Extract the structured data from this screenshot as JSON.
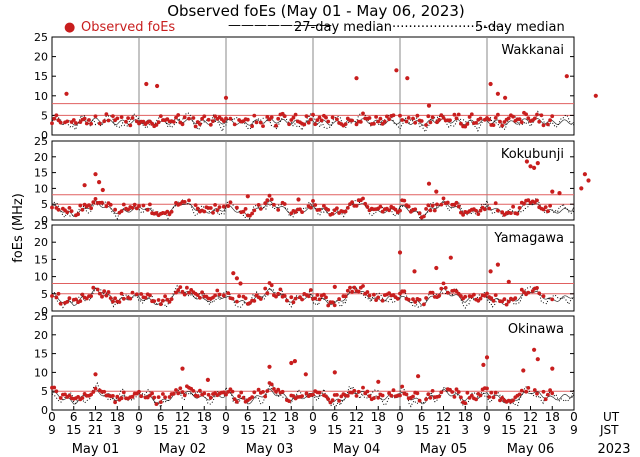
{
  "chart_data": {
    "type": "scatter",
    "title": "Observed foEs (May 01 - May 06, 2023)",
    "ylabel": "foEs (MHz)",
    "legend": {
      "observed": "Observed foEs",
      "median27": "27-day median",
      "median5": "5-day median"
    },
    "legend_markers": {
      "observed": "●",
      "median27": "————————",
      "median5": "····························"
    },
    "ylim": [
      0,
      25
    ],
    "yticks": [
      0,
      5,
      10,
      15,
      20,
      25
    ],
    "hour_ticks_ut": [
      "0",
      "6",
      "12",
      "18",
      "0",
      "6",
      "12",
      "18",
      "0",
      "6",
      "12",
      "18",
      "0",
      "6",
      "12",
      "18",
      "0",
      "6",
      "12",
      "18",
      "0",
      "6",
      "12",
      "18",
      "0"
    ],
    "hour_ticks_jst": [
      "9",
      "15",
      "21",
      "3",
      "9",
      "15",
      "21",
      "3",
      "9",
      "15",
      "21",
      "3",
      "9",
      "15",
      "21",
      "3",
      "9",
      "15",
      "21",
      "3",
      "9",
      "15",
      "21",
      "3",
      "9"
    ],
    "row_labels": {
      "ut": "UT",
      "jst": "JST"
    },
    "dates": [
      "May 01",
      "May 02",
      "May 03",
      "May 04",
      "May 05",
      "May 06"
    ],
    "year": "2023",
    "colors": {
      "observed": "#c81e1e",
      "median27": "#333333",
      "reference_line": "#e06060",
      "grid": "#888888"
    },
    "stations": [
      {
        "name": "Wakkanai",
        "reference_lines": [
          5,
          8
        ],
        "median27_shape": [
          3.5,
          3.0,
          3.8,
          3.2,
          3.4
        ],
        "spikes": [
          {
            "t": 4,
            "y": 10.5
          },
          {
            "t": 26,
            "y": 13
          },
          {
            "t": 29,
            "y": 12.5
          },
          {
            "t": 48,
            "y": 9.5
          },
          {
            "t": 84,
            "y": 14.5
          },
          {
            "t": 95,
            "y": 16.5
          },
          {
            "t": 98,
            "y": 14.5
          },
          {
            "t": 104,
            "y": 7.5
          },
          {
            "t": 121,
            "y": 13
          },
          {
            "t": 123,
            "y": 10.5
          },
          {
            "t": 125,
            "y": 9.5
          },
          {
            "t": 142,
            "y": 15
          },
          {
            "t": 150,
            "y": 10
          }
        ]
      },
      {
        "name": "Kokubunji",
        "reference_lines": [
          5,
          8
        ],
        "median27_shape": [
          4.5,
          1.5,
          5.5,
          2.5,
          3.5
        ],
        "spikes": [
          {
            "t": 9,
            "y": 11
          },
          {
            "t": 12,
            "y": 14.5
          },
          {
            "t": 13,
            "y": 12
          },
          {
            "t": 14,
            "y": 9.5
          },
          {
            "t": 54,
            "y": 7.5
          },
          {
            "t": 68,
            "y": 6.5
          },
          {
            "t": 104,
            "y": 11.5
          },
          {
            "t": 106,
            "y": 9
          },
          {
            "t": 131,
            "y": 18.5
          },
          {
            "t": 132,
            "y": 17
          },
          {
            "t": 133,
            "y": 16.5
          },
          {
            "t": 134,
            "y": 18
          },
          {
            "t": 138,
            "y": 9
          },
          {
            "t": 140,
            "y": 8.5
          },
          {
            "t": 147,
            "y": 14.5
          },
          {
            "t": 148,
            "y": 12.5
          },
          {
            "t": 146,
            "y": 10
          }
        ]
      },
      {
        "name": "Yamagawa",
        "reference_lines": [
          5,
          8
        ],
        "median27_shape": [
          4.0,
          2.0,
          6.0,
          3.0,
          4.5
        ],
        "spikes": [
          {
            "t": 50,
            "y": 11
          },
          {
            "t": 51,
            "y": 9.5
          },
          {
            "t": 52,
            "y": 8
          },
          {
            "t": 78,
            "y": 7
          },
          {
            "t": 96,
            "y": 17
          },
          {
            "t": 100,
            "y": 11.5
          },
          {
            "t": 106,
            "y": 12.5
          },
          {
            "t": 110,
            "y": 15.5
          },
          {
            "t": 121,
            "y": 11.5
          },
          {
            "t": 123,
            "y": 13.5
          },
          {
            "t": 126,
            "y": 8.5
          }
        ]
      },
      {
        "name": "Okinawa",
        "reference_lines": [
          5
        ],
        "median27_shape": [
          4.5,
          2.0,
          5.0,
          3.0,
          4.0
        ],
        "spikes": [
          {
            "t": 12,
            "y": 9.5
          },
          {
            "t": 36,
            "y": 11
          },
          {
            "t": 43,
            "y": 8
          },
          {
            "t": 60,
            "y": 11.5
          },
          {
            "t": 66,
            "y": 12.5
          },
          {
            "t": 67,
            "y": 13
          },
          {
            "t": 70,
            "y": 9.5
          },
          {
            "t": 78,
            "y": 10
          },
          {
            "t": 90,
            "y": 7.5
          },
          {
            "t": 101,
            "y": 9
          },
          {
            "t": 120,
            "y": 14
          },
          {
            "t": 119,
            "y": 12
          },
          {
            "t": 130,
            "y": 10.5
          },
          {
            "t": 133,
            "y": 16
          },
          {
            "t": 134,
            "y": 13.5
          },
          {
            "t": 138,
            "y": 11
          }
        ]
      }
    ]
  }
}
